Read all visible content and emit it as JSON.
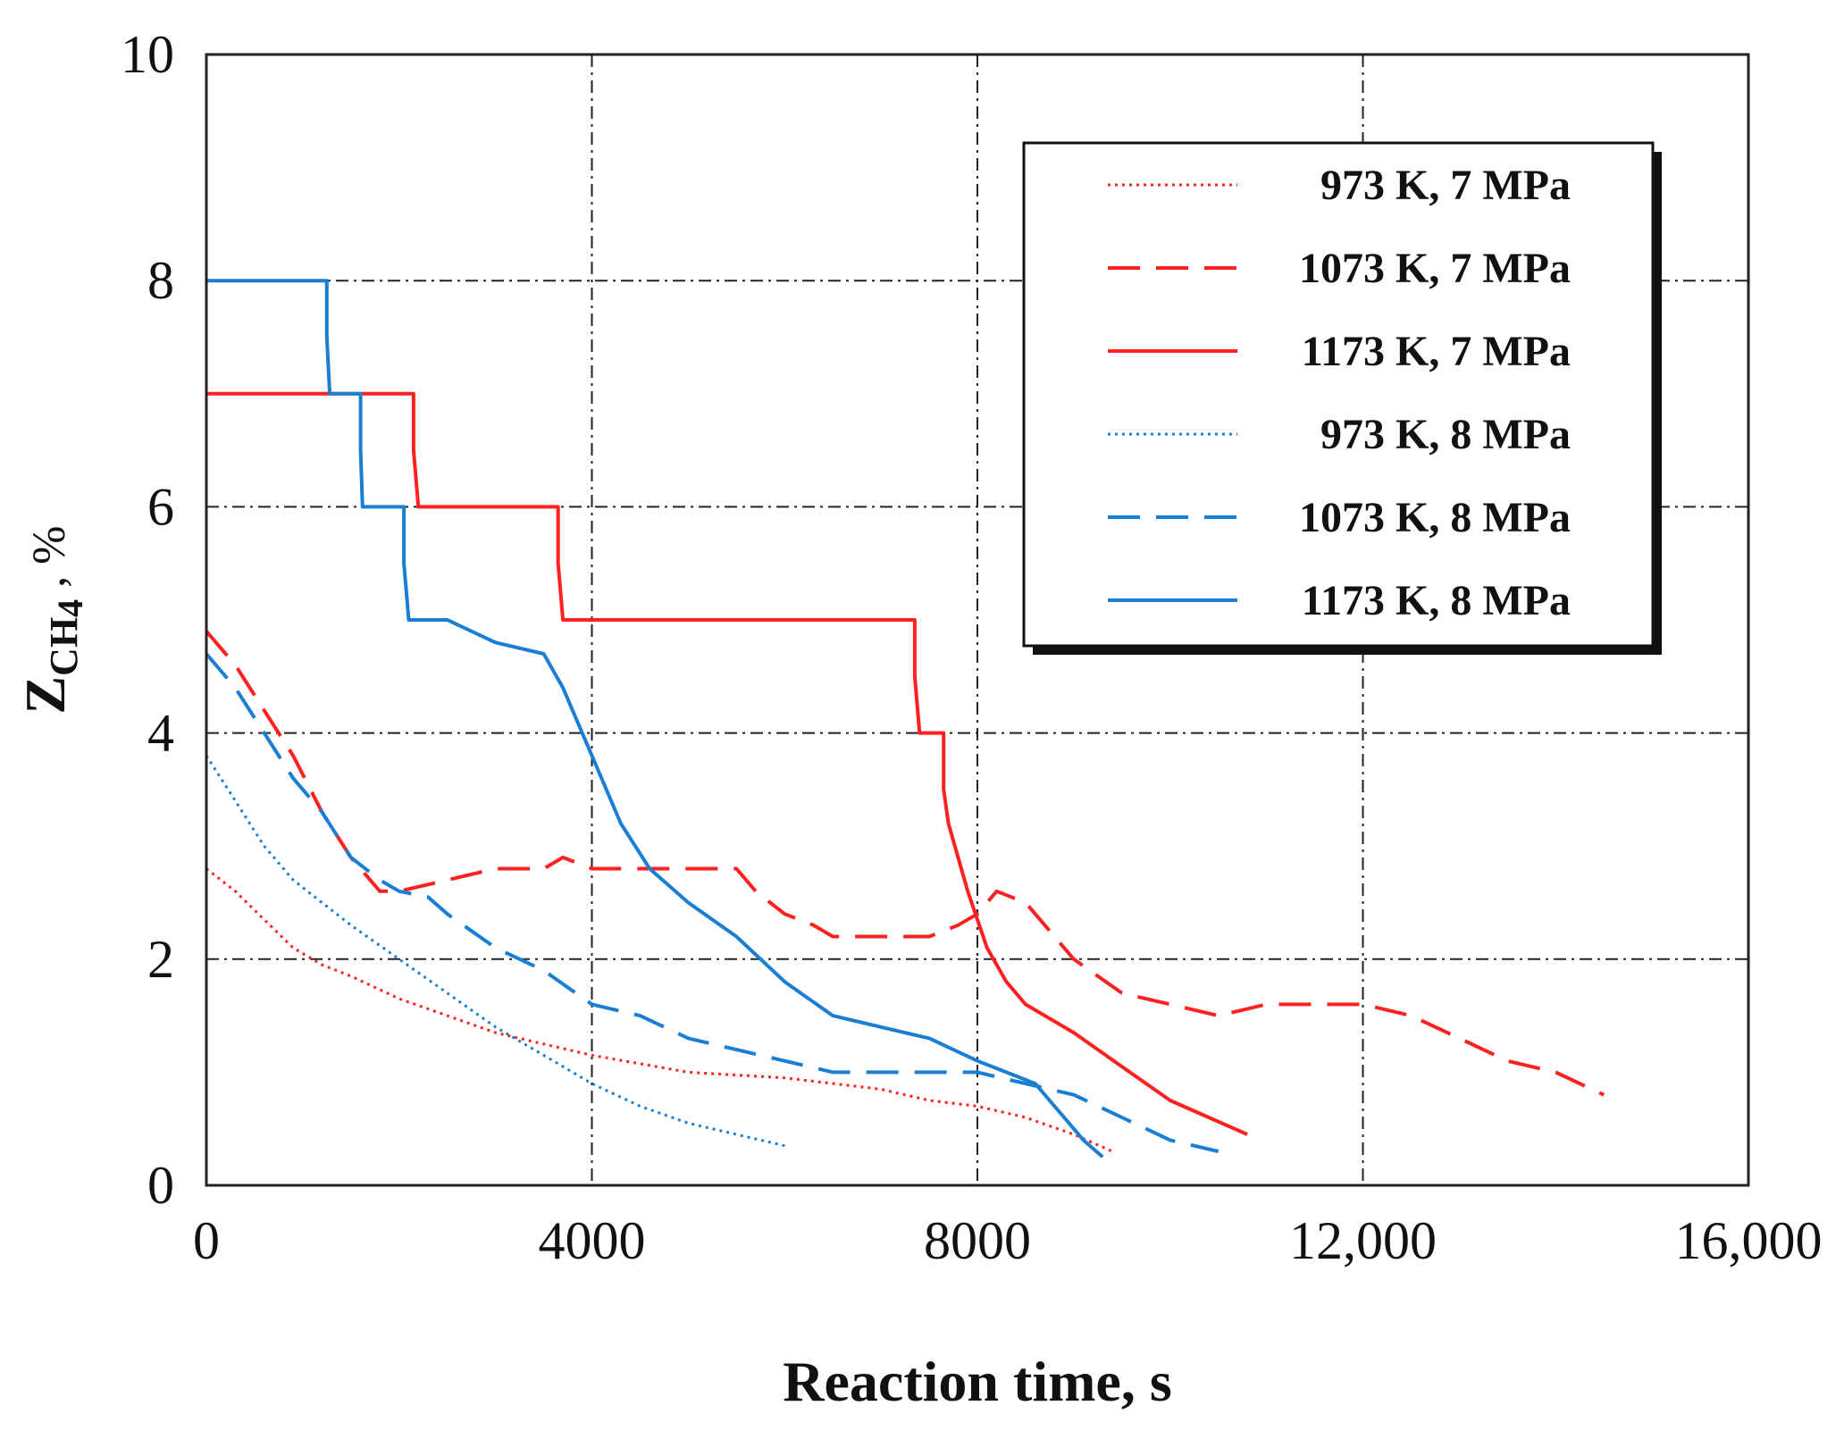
{
  "chart_data": {
    "type": "line",
    "title": "",
    "xlabel": "Reaction time, s",
    "ylabel": {
      "main": "Z",
      "sub": "CH",
      "subnum": "4",
      "unit": " , %"
    },
    "xlim": [
      0,
      16000
    ],
    "ylim": [
      0,
      10
    ],
    "xticks": [
      0,
      4000,
      8000,
      12000,
      16000
    ],
    "xtick_labels": [
      "0",
      "4000",
      "8000",
      "12,000",
      "16,000"
    ],
    "yticks": [
      0,
      2,
      4,
      6,
      8,
      10
    ],
    "ytick_labels": [
      "0",
      "2",
      "4",
      "6",
      "8",
      "10"
    ],
    "grid": true,
    "legend_position": "top-right",
    "series": [
      {
        "name": "973 K, 7 MPa",
        "color": "#ff2020",
        "style": "dotted",
        "x": [
          0,
          300,
          600,
          900,
          1200,
          1500,
          2000,
          2500,
          3000,
          3500,
          4000,
          5000,
          6000,
          7000,
          7500,
          8000,
          8500,
          9000,
          9400
        ],
        "y": [
          2.8,
          2.6,
          2.35,
          2.1,
          1.95,
          1.85,
          1.65,
          1.5,
          1.35,
          1.25,
          1.15,
          1.0,
          0.95,
          0.85,
          0.75,
          0.7,
          0.6,
          0.45,
          0.3
        ]
      },
      {
        "name": "1073 K, 7 MPa",
        "color": "#ff2020",
        "style": "dashed",
        "x": [
          0,
          300,
          600,
          900,
          1200,
          1500,
          1800,
          2000,
          2500,
          3000,
          3500,
          3700,
          4000,
          4500,
          5000,
          5500,
          5700,
          6000,
          6300,
          6500,
          7000,
          7500,
          7800,
          8000,
          8200,
          8500,
          8700,
          9000,
          9500,
          10000,
          10500,
          11000,
          12000,
          12500,
          13000,
          13500,
          14000,
          14500
        ],
        "y": [
          4.9,
          4.6,
          4.2,
          3.8,
          3.3,
          2.9,
          2.6,
          2.6,
          2.7,
          2.8,
          2.8,
          2.9,
          2.8,
          2.8,
          2.8,
          2.8,
          2.6,
          2.4,
          2.3,
          2.2,
          2.2,
          2.2,
          2.3,
          2.4,
          2.6,
          2.5,
          2.3,
          2.0,
          1.7,
          1.6,
          1.5,
          1.6,
          1.6,
          1.5,
          1.3,
          1.1,
          1.0,
          0.8
        ]
      },
      {
        "name": "1173 K, 7 MPa",
        "color": "#ff2020",
        "style": "solid",
        "x": [
          0,
          2150,
          2150,
          2200,
          3650,
          3650,
          3700,
          7350,
          7350,
          7400,
          7650,
          7650,
          7700,
          7900,
          8100,
          8300,
          8500,
          8700,
          9000,
          9500,
          10000,
          10800
        ],
        "y": [
          7,
          7,
          6.5,
          6,
          6,
          5.5,
          5,
          5,
          4.5,
          4,
          4,
          3.5,
          3.2,
          2.6,
          2.1,
          1.8,
          1.6,
          1.5,
          1.35,
          1.05,
          0.75,
          0.45
        ]
      },
      {
        "name": "973 K, 8 MPa",
        "color": "#1a7fd4",
        "style": "dotted",
        "x": [
          0,
          300,
          600,
          900,
          1200,
          1500,
          2000,
          2500,
          3000,
          3500,
          4000,
          4500,
          5000,
          5500,
          6000
        ],
        "y": [
          3.8,
          3.4,
          3.0,
          2.7,
          2.5,
          2.3,
          2.0,
          1.7,
          1.4,
          1.15,
          0.9,
          0.7,
          0.55,
          0.45,
          0.35
        ]
      },
      {
        "name": "1073 K, 8 MPa",
        "color": "#1a7fd4",
        "style": "dashed",
        "x": [
          0,
          300,
          600,
          900,
          1200,
          1500,
          1800,
          2000,
          2300,
          2500,
          3000,
          3500,
          4000,
          4500,
          5000,
          5500,
          6000,
          6500,
          7000,
          7500,
          8000,
          8500,
          9000,
          9500,
          10000,
          10500
        ],
        "y": [
          4.7,
          4.4,
          4.0,
          3.6,
          3.3,
          2.9,
          2.7,
          2.6,
          2.55,
          2.4,
          2.1,
          1.9,
          1.6,
          1.5,
          1.3,
          1.2,
          1.1,
          1.0,
          1.0,
          1.0,
          1.0,
          0.9,
          0.8,
          0.6,
          0.4,
          0.3
        ]
      },
      {
        "name": "1173 K, 8 MPa",
        "color": "#1a7fd4",
        "style": "solid",
        "x": [
          0,
          1250,
          1250,
          1280,
          1600,
          1600,
          1620,
          2050,
          2050,
          2100,
          2500,
          3000,
          3500,
          3700,
          4000,
          4300,
          4600,
          5000,
          5500,
          6000,
          6500,
          7000,
          7500,
          8000,
          8300,
          8600,
          8900,
          9100,
          9300
        ],
        "y": [
          8,
          8,
          7.5,
          7,
          7,
          6.5,
          6,
          6,
          5.5,
          5,
          5,
          4.8,
          4.7,
          4.4,
          3.8,
          3.2,
          2.8,
          2.5,
          2.2,
          1.8,
          1.5,
          1.4,
          1.3,
          1.1,
          1.0,
          0.9,
          0.6,
          0.4,
          0.25
        ]
      }
    ]
  }
}
